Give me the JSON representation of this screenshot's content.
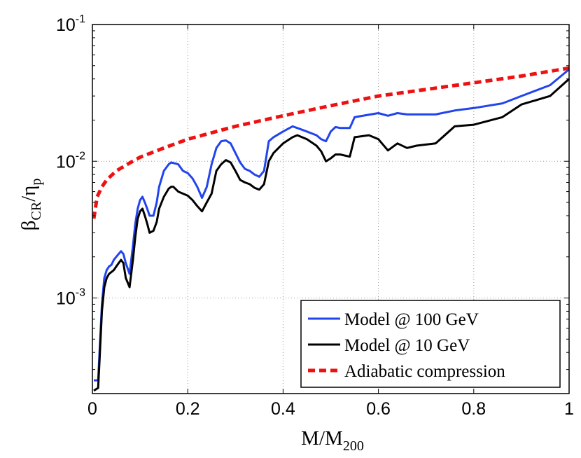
{
  "chart_data": {
    "type": "line",
    "title": "",
    "xlabel": {
      "main": "M/M",
      "sub": "200"
    },
    "ylabel": {
      "main": "β",
      "sub1": "CR",
      "sep": "/η",
      "sub2": "p"
    },
    "xlim": [
      0,
      1
    ],
    "ylim": [
      0.0002,
      0.1
    ],
    "yscale": "log",
    "grid": true,
    "legend_position": "bottom-right",
    "xticks": [
      {
        "value": 0,
        "label": "0"
      },
      {
        "value": 0.2,
        "label": "0.2"
      },
      {
        "value": 0.4,
        "label": "0.4"
      },
      {
        "value": 0.6,
        "label": "0.6"
      },
      {
        "value": 0.8,
        "label": "0.8"
      },
      {
        "value": 1,
        "label": "1"
      }
    ],
    "yticks": [
      {
        "value": 0.001,
        "base": "10",
        "exp": "-3"
      },
      {
        "value": 0.01,
        "base": "10",
        "exp": "-2"
      },
      {
        "value": 0.1,
        "base": "10",
        "exp": "-1"
      }
    ],
    "series": [
      {
        "name": "Model @ 100 GeV",
        "color": "#2244ee",
        "dash": "solid",
        "x": [
          0.003,
          0.012,
          0.015,
          0.02,
          0.025,
          0.03,
          0.035,
          0.04,
          0.045,
          0.05,
          0.055,
          0.06,
          0.065,
          0.07,
          0.078,
          0.085,
          0.09,
          0.095,
          0.1,
          0.105,
          0.11,
          0.115,
          0.12,
          0.128,
          0.135,
          0.14,
          0.15,
          0.16,
          0.165,
          0.17,
          0.18,
          0.19,
          0.2,
          0.21,
          0.22,
          0.23,
          0.24,
          0.25,
          0.26,
          0.27,
          0.28,
          0.29,
          0.3,
          0.31,
          0.32,
          0.33,
          0.34,
          0.35,
          0.36,
          0.37,
          0.38,
          0.4,
          0.42,
          0.43,
          0.45,
          0.47,
          0.48,
          0.49,
          0.5,
          0.51,
          0.52,
          0.54,
          0.55,
          0.6,
          0.62,
          0.64,
          0.66,
          0.68,
          0.72,
          0.76,
          0.8,
          0.86,
          0.9,
          0.96,
          1.0
        ],
        "y": [
          0.00025,
          0.00025,
          0.0004,
          0.0009,
          0.0014,
          0.0016,
          0.0017,
          0.00175,
          0.0019,
          0.002,
          0.0021,
          0.0022,
          0.0021,
          0.0018,
          0.0015,
          0.0024,
          0.0035,
          0.0045,
          0.0052,
          0.0055,
          0.005,
          0.0045,
          0.004,
          0.004,
          0.005,
          0.0065,
          0.0085,
          0.0095,
          0.0098,
          0.0097,
          0.0095,
          0.0085,
          0.0082,
          0.0075,
          0.0065,
          0.0054,
          0.0065,
          0.0095,
          0.0125,
          0.014,
          0.0142,
          0.0135,
          0.0115,
          0.0098,
          0.0088,
          0.0085,
          0.008,
          0.0077,
          0.0085,
          0.014,
          0.015,
          0.0165,
          0.018,
          0.0175,
          0.0165,
          0.0155,
          0.0145,
          0.014,
          0.0165,
          0.0178,
          0.0175,
          0.0175,
          0.021,
          0.0225,
          0.0215,
          0.0225,
          0.022,
          0.022,
          0.022,
          0.0235,
          0.0245,
          0.0265,
          0.03,
          0.036,
          0.047
        ]
      },
      {
        "name": "Model @ 10 GeV",
        "color": "#000000",
        "dash": "solid",
        "x": [
          0.003,
          0.012,
          0.015,
          0.02,
          0.025,
          0.03,
          0.035,
          0.04,
          0.045,
          0.05,
          0.055,
          0.06,
          0.065,
          0.07,
          0.078,
          0.085,
          0.09,
          0.095,
          0.1,
          0.105,
          0.11,
          0.115,
          0.12,
          0.128,
          0.135,
          0.14,
          0.15,
          0.16,
          0.165,
          0.17,
          0.18,
          0.19,
          0.2,
          0.21,
          0.22,
          0.23,
          0.24,
          0.25,
          0.26,
          0.27,
          0.28,
          0.29,
          0.3,
          0.31,
          0.32,
          0.33,
          0.34,
          0.35,
          0.36,
          0.37,
          0.38,
          0.4,
          0.42,
          0.43,
          0.45,
          0.47,
          0.48,
          0.49,
          0.5,
          0.51,
          0.52,
          0.54,
          0.55,
          0.58,
          0.6,
          0.62,
          0.64,
          0.66,
          0.68,
          0.72,
          0.76,
          0.8,
          0.86,
          0.9,
          0.96,
          1.0
        ],
        "y": [
          0.00021,
          0.00022,
          0.00035,
          0.0008,
          0.0012,
          0.0014,
          0.0015,
          0.00155,
          0.0016,
          0.0017,
          0.0018,
          0.0019,
          0.0018,
          0.0014,
          0.0012,
          0.0019,
          0.0028,
          0.0038,
          0.0043,
          0.0045,
          0.004,
          0.0035,
          0.003,
          0.0031,
          0.0036,
          0.0045,
          0.0055,
          0.0063,
          0.0065,
          0.0065,
          0.006,
          0.0058,
          0.0056,
          0.0052,
          0.0047,
          0.0043,
          0.005,
          0.0058,
          0.0085,
          0.0095,
          0.0102,
          0.0098,
          0.0085,
          0.0073,
          0.007,
          0.0068,
          0.0064,
          0.0062,
          0.0068,
          0.01,
          0.0115,
          0.0135,
          0.015,
          0.0155,
          0.0145,
          0.013,
          0.0118,
          0.01,
          0.0105,
          0.0112,
          0.0112,
          0.0108,
          0.015,
          0.0155,
          0.0145,
          0.012,
          0.0135,
          0.0125,
          0.013,
          0.0135,
          0.018,
          0.0185,
          0.021,
          0.026,
          0.03,
          0.04
        ]
      },
      {
        "name": "Adiabatic compression",
        "color": "#ee1111",
        "dash": "dashed",
        "x": [
          0.003,
          0.01,
          0.02,
          0.03,
          0.05,
          0.08,
          0.1,
          0.15,
          0.2,
          0.3,
          0.4,
          0.5,
          0.6,
          0.7,
          0.8,
          0.9,
          1.0
        ],
        "y": [
          0.0038,
          0.0055,
          0.0065,
          0.0073,
          0.0085,
          0.0098,
          0.0107,
          0.0125,
          0.0145,
          0.018,
          0.0215,
          0.0255,
          0.03,
          0.0335,
          0.0375,
          0.042,
          0.048
        ]
      }
    ]
  }
}
